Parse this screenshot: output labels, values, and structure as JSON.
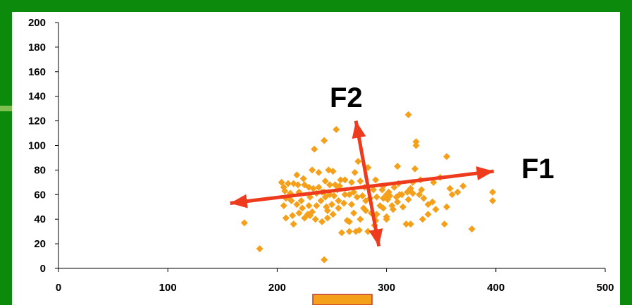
{
  "colors": {
    "frame": "#0b8a0b",
    "plot_background": "#ffffff",
    "point": "#f5a01a",
    "arrow": "#ee3b1e",
    "footer_tab": "#f5a01a",
    "footer_tab_border": "#c0392b"
  },
  "chart_data": {
    "type": "scatter",
    "title": "",
    "xlabel": "",
    "ylabel": "",
    "xlim": [
      0,
      500
    ],
    "ylim": [
      0,
      200
    ],
    "x_ticks": [
      "0",
      "100",
      "200",
      "300",
      "400",
      "500"
    ],
    "y_ticks": [
      "0",
      "20",
      "40",
      "60",
      "80",
      "100",
      "120",
      "140",
      "160",
      "180",
      "200"
    ],
    "grid": false,
    "legend": "none",
    "series": [
      {
        "marker": "diamond",
        "points": [
          [
            170,
            37
          ],
          [
            184,
            16
          ],
          [
            243,
            7
          ],
          [
            254,
            113
          ],
          [
            320,
            125
          ],
          [
            234,
            97
          ],
          [
            243,
            104
          ],
          [
            327,
            103
          ],
          [
            327,
            100
          ],
          [
            355,
            91
          ],
          [
            310,
            83
          ],
          [
            326,
            81
          ],
          [
            358,
            65
          ],
          [
            397,
            62
          ],
          [
            397,
            55
          ],
          [
            378,
            32
          ],
          [
            353,
            36
          ],
          [
            333,
            40
          ],
          [
            338,
            44
          ],
          [
            345,
            48
          ],
          [
            355,
            50
          ],
          [
            360,
            60
          ],
          [
            365,
            62
          ],
          [
            370,
            67
          ],
          [
            349,
            74
          ],
          [
            331,
            72
          ],
          [
            320,
            56
          ],
          [
            315,
            50
          ],
          [
            300,
            60
          ],
          [
            290,
            72
          ],
          [
            288,
            64
          ],
          [
            281,
            55
          ],
          [
            279,
            49
          ],
          [
            270,
            45
          ],
          [
            266,
            38
          ],
          [
            259,
            29
          ],
          [
            266,
            30
          ],
          [
            272,
            30
          ],
          [
            275,
            31
          ],
          [
            283,
            30
          ],
          [
            289,
            35
          ],
          [
            291,
            44
          ],
          [
            297,
            49
          ],
          [
            305,
            51
          ],
          [
            310,
            54
          ],
          [
            300,
            40
          ],
          [
            306,
            48
          ],
          [
            322,
            36
          ],
          [
            318,
            36
          ],
          [
            307,
            66
          ],
          [
            322,
            65
          ],
          [
            332,
            64
          ],
          [
            343,
            70
          ],
          [
            312,
            60
          ],
          [
            302,
            62
          ],
          [
            297,
            67
          ],
          [
            283,
            82
          ],
          [
            274,
            87
          ],
          [
            271,
            78
          ],
          [
            276,
            71
          ],
          [
            268,
            70
          ],
          [
            258,
            72
          ],
          [
            255,
            64
          ],
          [
            248,
            60
          ],
          [
            244,
            58
          ],
          [
            240,
            55
          ],
          [
            236,
            51
          ],
          [
            232,
            46
          ],
          [
            228,
            44
          ],
          [
            223,
            49
          ],
          [
            218,
            52
          ],
          [
            213,
            55
          ],
          [
            210,
            58
          ],
          [
            207,
            63
          ],
          [
            206,
            66
          ],
          [
            204,
            70
          ],
          [
            210,
            69
          ],
          [
            215,
            69
          ],
          [
            219,
            68
          ],
          [
            225,
            68
          ],
          [
            229,
            66
          ],
          [
            233,
            65
          ],
          [
            238,
            66
          ],
          [
            243,
            62
          ],
          [
            248,
            68
          ],
          [
            253,
            68
          ],
          [
            257,
            67
          ],
          [
            262,
            72
          ],
          [
            247,
            80
          ],
          [
            251,
            79
          ],
          [
            232,
            80
          ],
          [
            224,
            73
          ],
          [
            218,
            76
          ],
          [
            212,
            61
          ],
          [
            208,
            57
          ],
          [
            206,
            51
          ],
          [
            208,
            41
          ],
          [
            214,
            43
          ],
          [
            220,
            45
          ],
          [
            225,
            41
          ],
          [
            230,
            43
          ],
          [
            235,
            40
          ],
          [
            241,
            38
          ],
          [
            246,
            41
          ],
          [
            251,
            44
          ],
          [
            256,
            49
          ],
          [
            261,
            53
          ],
          [
            266,
            60
          ],
          [
            270,
            62
          ],
          [
            278,
            59
          ],
          [
            285,
            57
          ],
          [
            291,
            58
          ],
          [
            297,
            57
          ],
          [
            303,
            59
          ],
          [
            309,
            58
          ],
          [
            314,
            60
          ],
          [
            319,
            62
          ],
          [
            324,
            61
          ],
          [
            330,
            60
          ],
          [
            334,
            57
          ],
          [
            338,
            52
          ],
          [
            342,
            54
          ],
          [
            230,
            58
          ],
          [
            236,
            61
          ],
          [
            241,
            62
          ],
          [
            250,
            52
          ],
          [
            256,
            55
          ],
          [
            262,
            60
          ],
          [
            273,
            58
          ],
          [
            281,
            47
          ],
          [
            286,
            45
          ],
          [
            294,
            51
          ],
          [
            301,
            56
          ],
          [
            215,
            36
          ],
          [
            222,
            55
          ],
          [
            246,
            47
          ],
          [
            264,
            39
          ],
          [
            276,
            40
          ],
          [
            290,
            39
          ],
          [
            300,
            42
          ],
          [
            238,
            78
          ],
          [
            244,
            71
          ],
          [
            252,
            59
          ],
          [
            268,
            52
          ],
          [
            280,
            66
          ],
          [
            296,
            64
          ],
          [
            311,
            69
          ],
          [
            324,
            70
          ],
          [
            220,
            62
          ],
          [
            229,
            51
          ],
          [
            245,
            50
          ]
        ]
      }
    ],
    "annotations": [
      {
        "label": "F1",
        "from": [
          157,
          53
        ],
        "to": [
          398,
          79
        ]
      },
      {
        "label": "F2",
        "from": [
          293,
          18
        ],
        "to": [
          272,
          120
        ]
      }
    ]
  }
}
